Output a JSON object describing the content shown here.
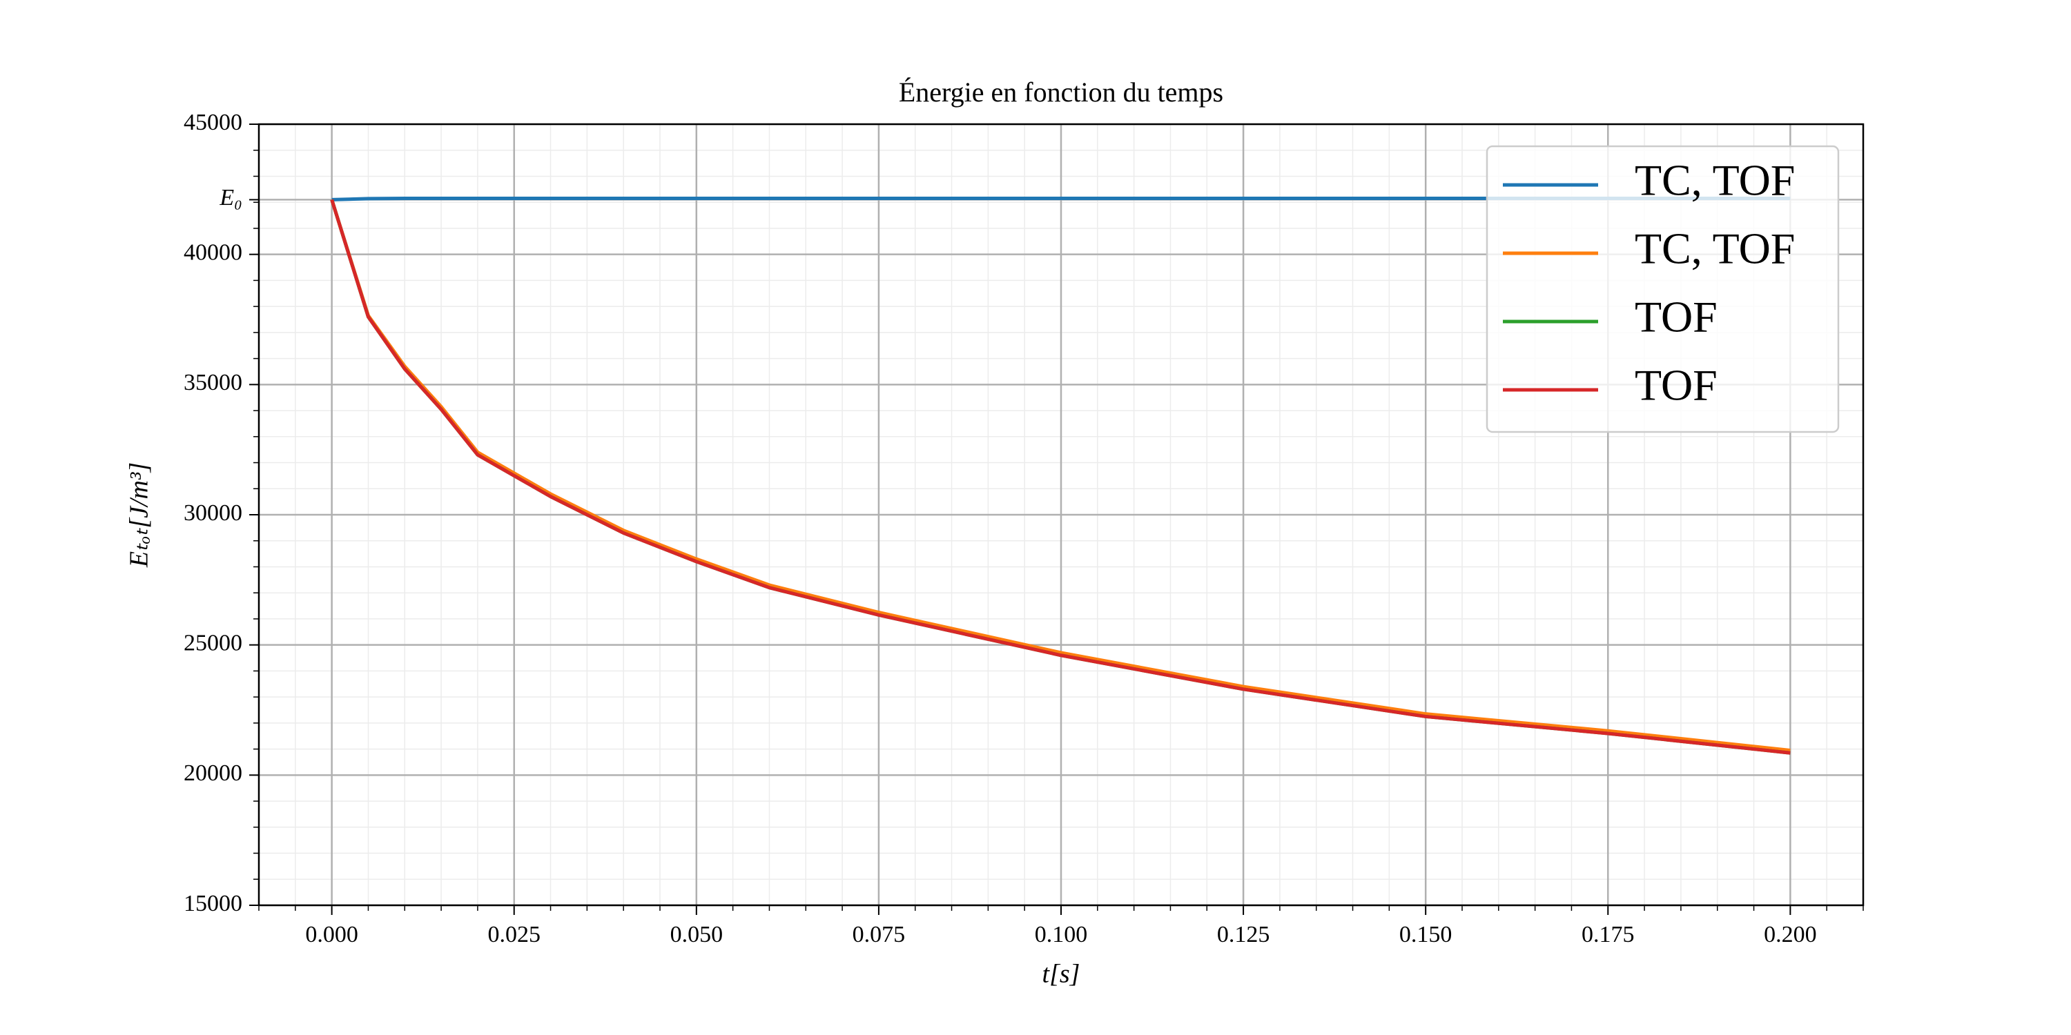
{
  "chart_data": {
    "type": "line",
    "title": "Énergie en fonction du temps",
    "x_label": "t[s]",
    "y_label": "Eₜₒₜ[J/m³]",
    "x": [
      0,
      0.005,
      0.01,
      0.015,
      0.02,
      0.025,
      0.03,
      0.04,
      0.05,
      0.06,
      0.075,
      0.1,
      0.125,
      0.15,
      0.175,
      0.2
    ],
    "series": [
      {
        "name": "TC, TOF",
        "color": "#1f77b4",
        "values": [
          42100,
          42140,
          42150,
          42150,
          42150,
          42150,
          42150,
          42150,
          42150,
          42150,
          42150,
          42150,
          42150,
          42150,
          42150,
          42150
        ]
      },
      {
        "name": "TC, TOF",
        "color": "#ff7f0e",
        "values": [
          42100,
          37650,
          35700,
          34150,
          32400,
          31600,
          30800,
          29400,
          28300,
          27300,
          26250,
          24700,
          23400,
          22350,
          21700,
          20950
        ]
      },
      {
        "name": "TOF",
        "color": "#2ca02c",
        "values": [
          42100,
          37600,
          35600,
          34050,
          32300,
          31500,
          30700,
          29300,
          28200,
          27200,
          26150,
          24600,
          23300,
          22250,
          21600,
          20850
        ]
      },
      {
        "name": "TOF",
        "color": "#d62728",
        "values": [
          42100,
          37600,
          35600,
          34050,
          32300,
          31500,
          30700,
          29300,
          28200,
          27200,
          26150,
          24600,
          23300,
          22250,
          21600,
          20850
        ]
      }
    ],
    "xlim": [
      -0.01,
      0.21
    ],
    "ylim": [
      15000,
      45000
    ],
    "xticks": [
      {
        "value": 0,
        "label": "0.000"
      },
      {
        "value": 0.025,
        "label": "0.025"
      },
      {
        "value": 0.05,
        "label": "0.050"
      },
      {
        "value": 0.075,
        "label": "0.075"
      },
      {
        "value": 0.1,
        "label": "0.100"
      },
      {
        "value": 0.125,
        "label": "0.125"
      },
      {
        "value": 0.15,
        "label": "0.150"
      },
      {
        "value": 0.175,
        "label": "0.175"
      },
      {
        "value": 0.2,
        "label": "0.200"
      }
    ],
    "yticks": [
      15000,
      20000,
      25000,
      30000,
      35000,
      40000,
      {
        "value": 42100,
        "label": "E₀"
      },
      45000
    ],
    "grid": true,
    "minor_divisions": 5,
    "legend": "upper right"
  }
}
